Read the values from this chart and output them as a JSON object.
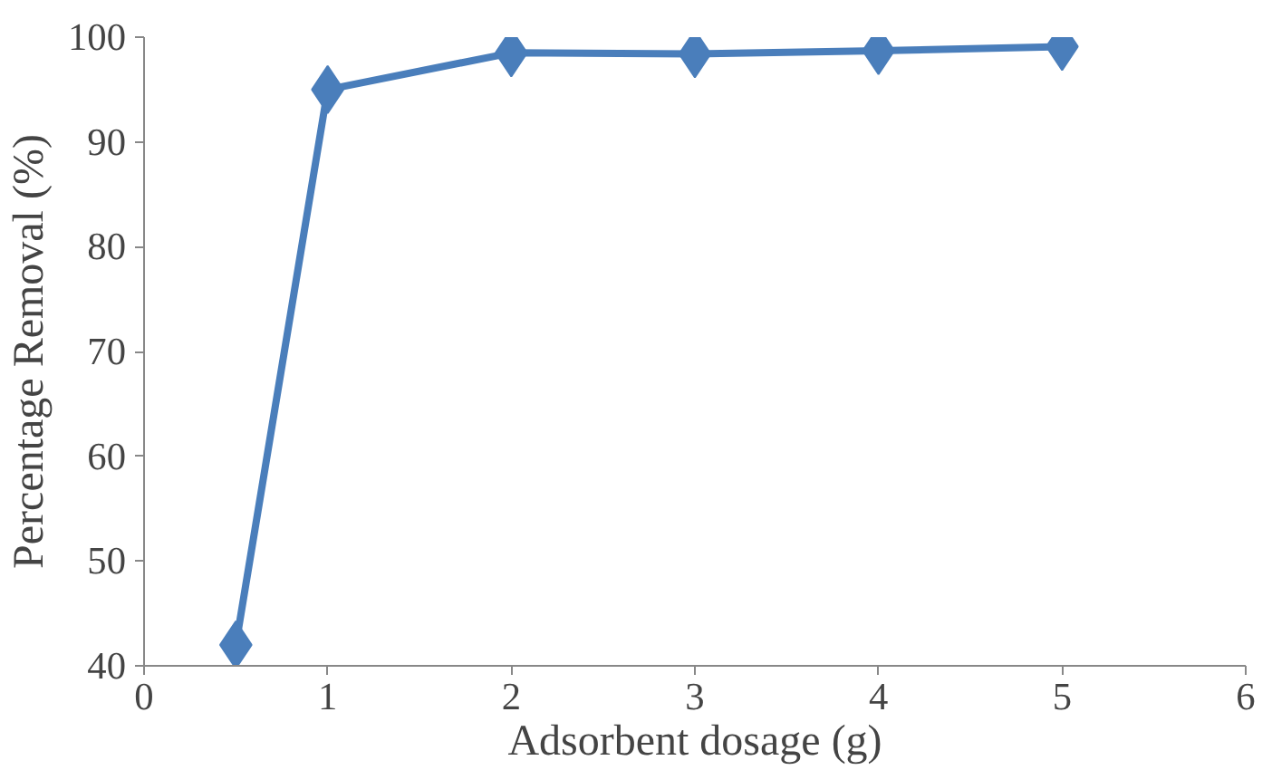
{
  "chart_data": {
    "type": "line",
    "xlabel": "Adsorbent dosage (g)",
    "ylabel": "Percentage Removal (%)",
    "x": [
      0.5,
      1,
      2,
      3,
      4,
      5
    ],
    "series": [
      {
        "color": "#4a7ebb",
        "values": [
          42,
          95,
          98.5,
          98.4,
          98.7,
          99.1
        ]
      }
    ],
    "xlim": [
      0,
      6
    ],
    "xticks": [
      0,
      1,
      2,
      3,
      4,
      5,
      6
    ],
    "ylim": [
      40,
      100
    ],
    "yticks": [
      40,
      50,
      60,
      70,
      80,
      90,
      100
    ],
    "grid": false,
    "marker": "diamond",
    "line_style": "solid"
  }
}
